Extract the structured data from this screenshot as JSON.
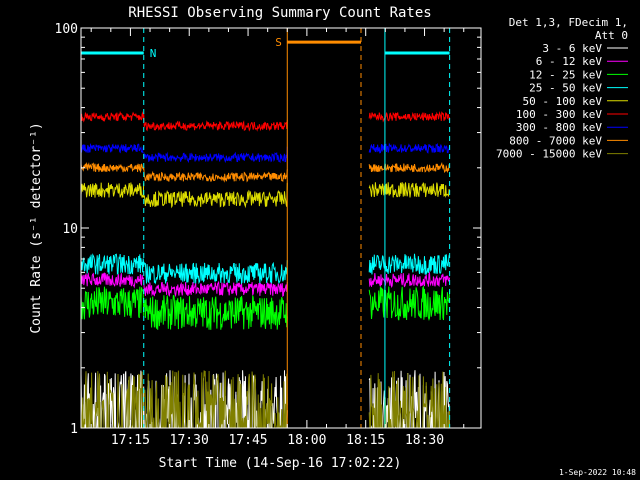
{
  "chart_data": {
    "type": "line",
    "title": "RHESSI Observing Summary Count Rates",
    "xlabel": "Start Time (14-Sep-16 17:02:22)",
    "ylabel": "Count Rate (s⁻¹ detector⁻¹)",
    "yscale": "log",
    "ylim": [
      1,
      100
    ],
    "xlim_minutes": [
      0,
      102
    ],
    "x_ticks": [
      {
        "label": "17:15",
        "t": 12.6
      },
      {
        "label": "17:30",
        "t": 27.6
      },
      {
        "label": "17:45",
        "t": 42.6
      },
      {
        "label": "18:00",
        "t": 57.6
      },
      {
        "label": "18:15",
        "t": 72.6
      },
      {
        "label": "18:30",
        "t": 87.6
      }
    ],
    "y_ticks": [
      {
        "label": "1",
        "v": 1
      },
      {
        "label": "10",
        "v": 10
      },
      {
        "label": "100",
        "v": 100
      }
    ],
    "legend_header": [
      "Det 1,3, FDecim 1,",
      "Att 0"
    ],
    "series": [
      {
        "name": "3 - 6 keV",
        "color": "#ffffff",
        "level": 1.5,
        "noise": 0.35,
        "spiky": true
      },
      {
        "name": "6 - 12 keV",
        "color": "#ff00ff",
        "level": 5.5,
        "noise": 0.08
      },
      {
        "name": "12 - 25 keV",
        "color": "#00ff00",
        "level": 4.2,
        "noise": 0.2
      },
      {
        "name": "25 - 50 keV",
        "color": "#00ffff",
        "level": 6.6,
        "noise": 0.12
      },
      {
        "name": "50 - 100 keV",
        "color": "#dddd00",
        "level": 15.5,
        "noise": 0.09
      },
      {
        "name": "100 - 300 keV",
        "color": "#ff0000",
        "level": 36,
        "noise": 0.05
      },
      {
        "name": "300 - 800 keV",
        "color": "#0000ff",
        "level": 25,
        "noise": 0.05
      },
      {
        "name": "800 - 7000 keV",
        "color": "#ff8c00",
        "level": 20,
        "noise": 0.05
      },
      {
        "name": "7000 - 15000 keV",
        "color": "#808000",
        "level": 1.3,
        "noise": 0.3,
        "spiky": true
      }
    ],
    "flag_bars": [
      {
        "label": "N",
        "color": "#00ffff",
        "t_start": 0,
        "t_end": 16.0,
        "value": 75
      },
      {
        "label": "S",
        "color": "#ff8c00",
        "t_start": 52.6,
        "t_end": 71.4,
        "value": 85
      },
      {
        "label": "",
        "color": "#00ffff",
        "t_start": 77.5,
        "t_end": 94.0,
        "value": 75
      }
    ],
    "data_gaps": [
      [
        16.0,
        52.6
      ],
      [
        71.4,
        73.5
      ]
    ],
    "markers": [
      {
        "t": 16.0,
        "color": "#00ffff",
        "style": "dashed"
      },
      {
        "t": 52.6,
        "color": "#ff8c00",
        "style": "solid"
      },
      {
        "t": 71.4,
        "color": "#ff8c00",
        "style": "dashed"
      },
      {
        "t": 77.5,
        "color": "#00ffff",
        "style": "solid"
      },
      {
        "t": 94.0,
        "color": "#00ffff",
        "style": "dashed"
      }
    ]
  },
  "footer": {
    "date": "1-Sep-2022 10:48"
  }
}
